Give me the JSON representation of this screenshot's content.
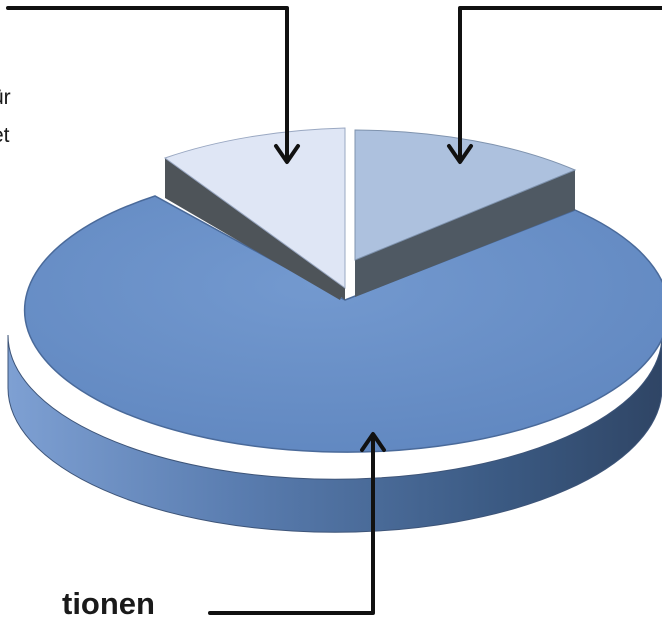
{
  "labels": {
    "left_line1": "ür",
    "left_line2": "et",
    "bottom": "tionen"
  },
  "colors": {
    "main_top": "#6f93c9",
    "main_side_dark": "#2f4565",
    "main_side_light": "#5a7db0",
    "light_top": "#dfe6f5",
    "light_side": "#4e5459",
    "mid_top": "#adc1de",
    "mid_side": "#4f5963",
    "arrow": "#111111"
  },
  "chart_data": {
    "type": "pie",
    "style": "3d-exploded",
    "slices": [
      {
        "label": "tionen",
        "value": 78,
        "color": "#6f93c9"
      },
      {
        "label": "",
        "value": 11,
        "color": "#dfe6f5"
      },
      {
        "label": "",
        "value": 11,
        "color": "#adc1de"
      }
    ]
  }
}
